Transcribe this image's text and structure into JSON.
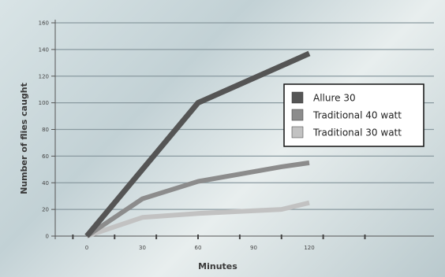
{
  "chart_data": {
    "type": "line",
    "title": "",
    "xlabel": "Minutes",
    "ylabel": "Number of flies caught",
    "x": [
      0,
      30,
      60,
      90,
      120
    ],
    "xlim": [
      -20,
      200
    ],
    "ylim": [
      0,
      160
    ],
    "yticks": [
      0,
      20,
      40,
      60,
      80,
      100,
      120,
      140,
      160
    ],
    "xticks": [
      0,
      30,
      60,
      90,
      120
    ],
    "grid": true,
    "legend_position": "right",
    "series": [
      {
        "name": "Allure 30",
        "color": "#555555",
        "x": [
          0,
          60,
          120
        ],
        "values": [
          0,
          100,
          137
        ]
      },
      {
        "name": "Traditional 40 watt",
        "color": "#8c8c8c",
        "x": [
          0,
          30,
          60,
          105,
          120
        ],
        "values": [
          0,
          28,
          41,
          52,
          55
        ]
      },
      {
        "name": "Traditional 30 watt",
        "color": "#c2c2c2",
        "x": [
          0,
          30,
          60,
          105,
          120
        ],
        "values": [
          0,
          14,
          17,
          20,
          25
        ]
      }
    ]
  }
}
